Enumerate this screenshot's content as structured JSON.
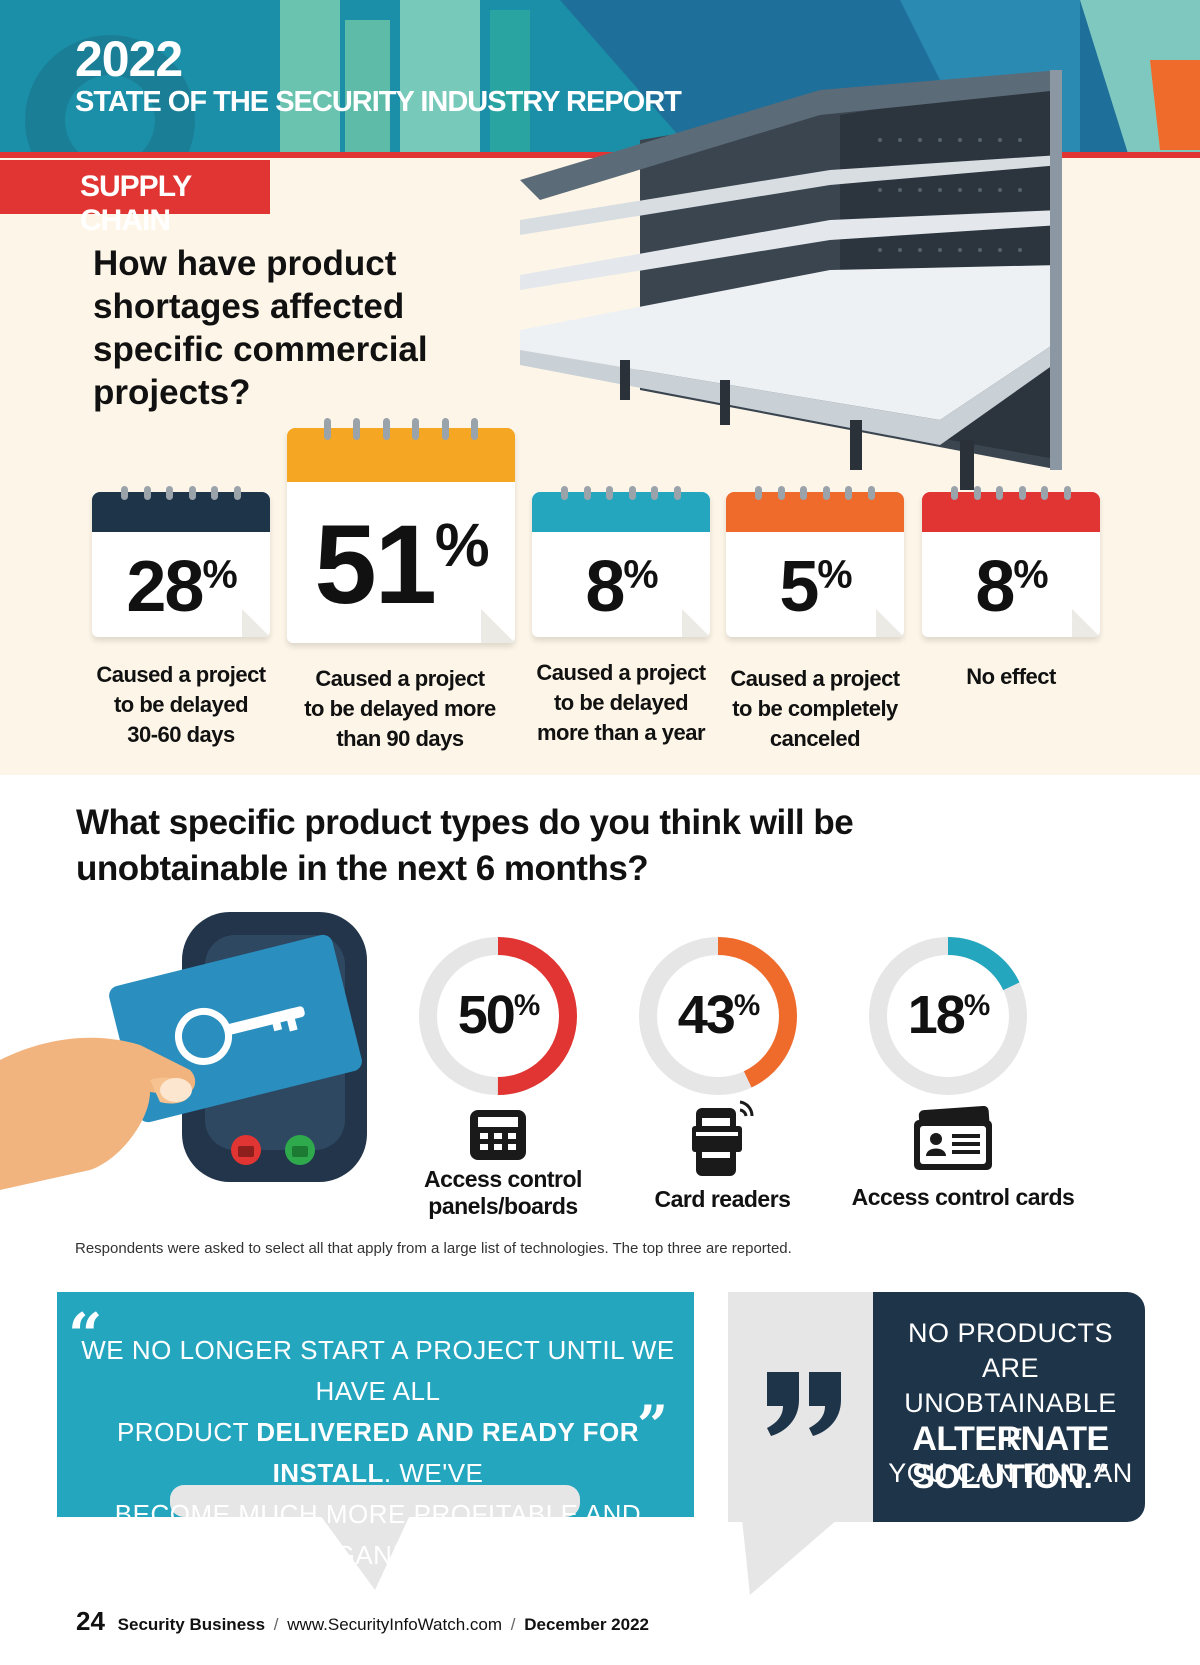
{
  "header": {
    "year": "2022",
    "title": "STATE OF THE SECURITY INDUSTRY REPORT",
    "section": "SUPPLY CHAIN"
  },
  "question1": "How have product shortages affected specific commercial projects?",
  "project_impacts": [
    {
      "percent": "28",
      "caption": [
        "Caused a project",
        "to be delayed",
        "30-60 days"
      ],
      "color": "#1e3449"
    },
    {
      "percent": "51",
      "caption": [
        "Caused a project",
        "to be delayed more",
        "than 90 days"
      ],
      "color": "#f5a623"
    },
    {
      "percent": "8",
      "caption": [
        "Caused a project",
        "to be delayed",
        "more than a year"
      ],
      "color": "#25a6bf"
    },
    {
      "percent": "5",
      "caption": [
        "Caused a project",
        "to be completely",
        "canceled"
      ],
      "color": "#ef6b2c"
    },
    {
      "percent": "8",
      "caption": [
        "No effect"
      ],
      "color": "#e03532"
    }
  ],
  "percent_sign": "%",
  "question2": "What specific product types do you think will be unobtainable in the next 6 months?",
  "product_types": [
    {
      "percent": 50,
      "label": "50",
      "caption": [
        "Access control",
        "panels/boards"
      ],
      "color": "#e03532",
      "icon": "control-panel-icon"
    },
    {
      "percent": 43,
      "label": "43",
      "caption": [
        "Card readers"
      ],
      "color": "#ef6b2c",
      "icon": "card-reader-icon"
    },
    {
      "percent": 18,
      "label": "18",
      "caption": [
        "Access control cards"
      ],
      "color": "#25a6bf",
      "icon": "access-card-icon"
    }
  ],
  "footnote": "Respondents were asked to select all that apply from a large list of technologies. The top three are reported.",
  "quote1": {
    "line1": "WE NO LONGER START A PROJECT UNTIL WE HAVE ALL",
    "line2_pre": "PRODUCT ",
    "line2_bold": "DELIVERED AND READY FOR INSTALL",
    "line2_post": ". WE'VE",
    "line3": "BECOME MUCH MORE PROFITABLE AND ORGANIZED."
  },
  "quote2": {
    "lines": [
      "NO PRODUCTS ARE",
      "UNOBTAINABLE IF",
      "YOU CAN FIND AN"
    ],
    "em1": "ALTERNATE",
    "em2": "SOLUTION."
  },
  "footer": {
    "page": "24",
    "publication": "Security Business",
    "url": "www.SecurityInfoWatch.com",
    "date": "December 2022",
    "separator": "/"
  }
}
